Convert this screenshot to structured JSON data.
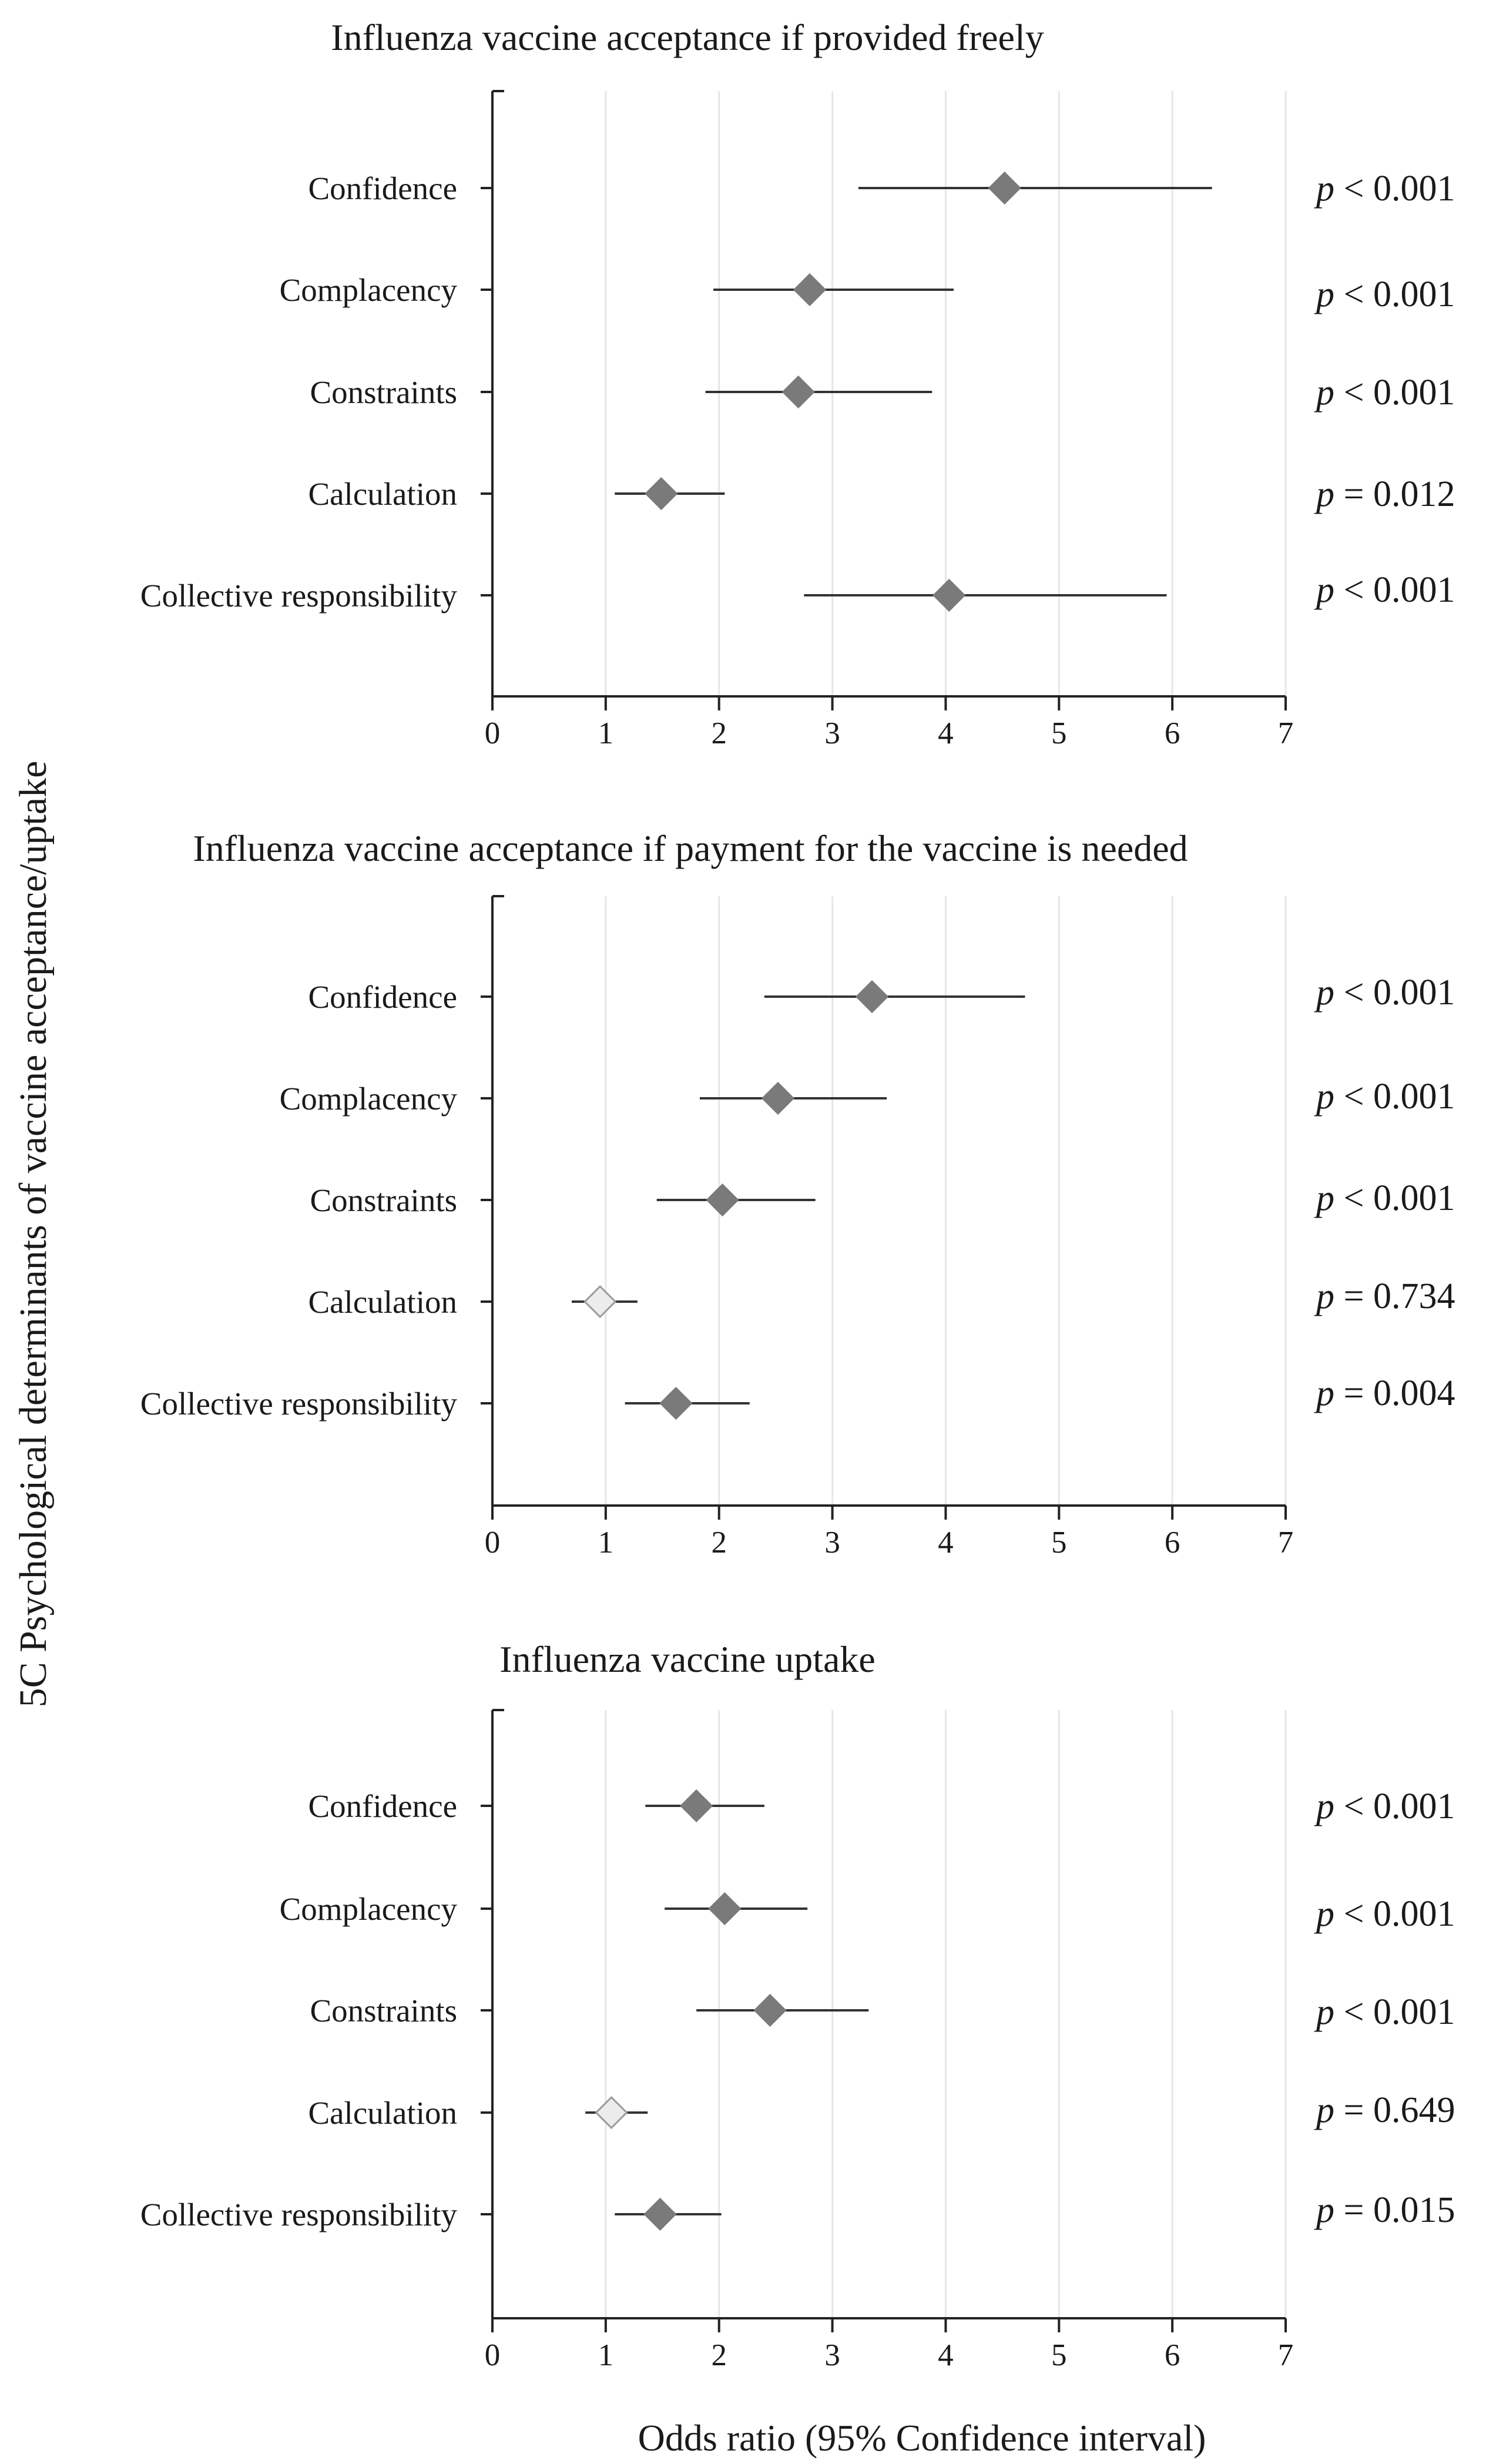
{
  "y_axis_label": "5C Psychological determinants of vaccine acceptance/uptake",
  "x_axis_label": "Odds ratio (95% Confidence interval)",
  "colors": {
    "significant_marker": "#7a7a7a",
    "nonsignificant_marker": "#ececec",
    "ci_line": "#333333",
    "axis": "#222222",
    "gridline": "#e6e6e6"
  },
  "chart_data": [
    {
      "type": "forest",
      "title": "Influenza vaccine acceptance if provided freely",
      "xlim": [
        0,
        7
      ],
      "xticks": [
        "0",
        "1",
        "2",
        "3",
        "4",
        "5",
        "6",
        "7"
      ],
      "categories": [
        "Confidence",
        "Complacency",
        "Constraints",
        "Calculation",
        "Collective responsibility"
      ],
      "or": [
        4.52,
        2.8,
        2.7,
        1.49,
        4.03
      ],
      "ci_low": [
        3.23,
        1.95,
        1.88,
        1.08,
        2.75
      ],
      "ci_high": [
        6.35,
        4.07,
        3.88,
        2.05,
        5.95
      ],
      "significant": [
        true,
        true,
        true,
        true,
        true
      ],
      "p_symbol": "p",
      "p_text": [
        "< 0.001",
        "< 0.001",
        "< 0.001",
        "= 0.012",
        "< 0.001"
      ]
    },
    {
      "type": "forest",
      "title": "Influenza vaccine acceptance if payment for the vaccine is needed",
      "xlim": [
        0,
        7
      ],
      "xticks": [
        "0",
        "1",
        "2",
        "3",
        "4",
        "5",
        "6",
        "7"
      ],
      "categories": [
        "Confidence",
        "Complacency",
        "Constraints",
        "Calculation",
        "Collective responsibility"
      ],
      "or": [
        3.35,
        2.52,
        2.03,
        0.95,
        1.62
      ],
      "ci_low": [
        2.4,
        1.83,
        1.45,
        0.7,
        1.17
      ],
      "ci_high": [
        4.7,
        3.48,
        2.85,
        1.28,
        2.27
      ],
      "significant": [
        true,
        true,
        true,
        false,
        true
      ],
      "p_symbol": "p",
      "p_text": [
        "< 0.001",
        "< 0.001",
        "< 0.001",
        "= 0.734",
        "= 0.004"
      ]
    },
    {
      "type": "forest",
      "title": "Influenza vaccine uptake",
      "xlim": [
        0,
        7
      ],
      "xticks": [
        "0",
        "1",
        "2",
        "3",
        "4",
        "5",
        "6",
        "7"
      ],
      "categories": [
        "Confidence",
        "Complacency",
        "Constraints",
        "Calculation",
        "Collective responsibility"
      ],
      "or": [
        1.8,
        2.05,
        2.45,
        1.05,
        1.48
      ],
      "ci_low": [
        1.35,
        1.52,
        1.8,
        0.82,
        1.08
      ],
      "ci_high": [
        2.4,
        2.78,
        3.32,
        1.37,
        2.02
      ],
      "significant": [
        true,
        true,
        true,
        false,
        true
      ],
      "p_symbol": "p",
      "p_text": [
        "< 0.001",
        "< 0.001",
        "< 0.001",
        "= 0.649",
        "= 0.015"
      ]
    }
  ]
}
